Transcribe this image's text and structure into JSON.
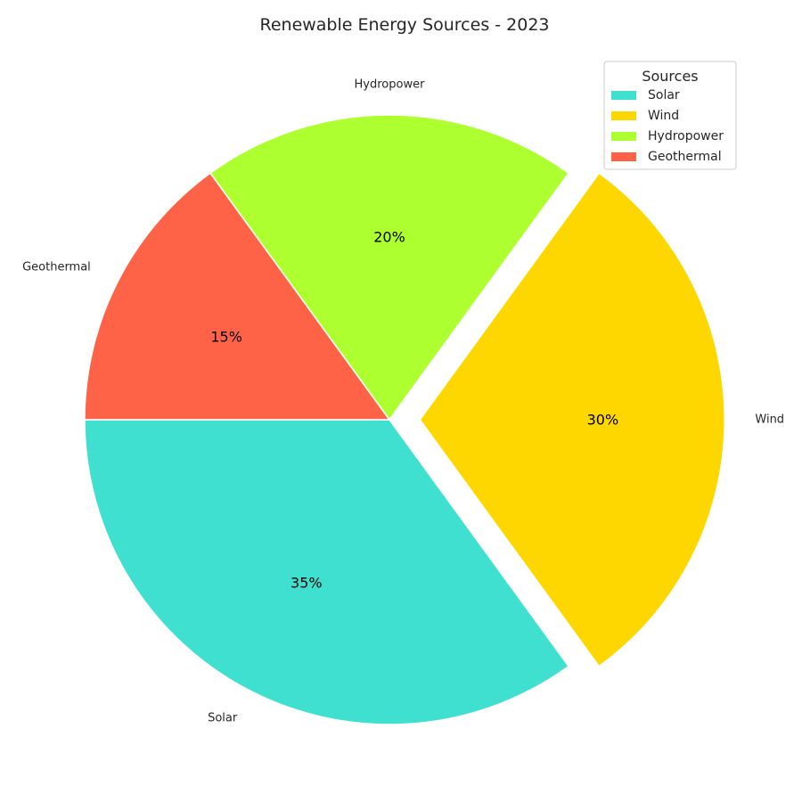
{
  "chart_data": {
    "type": "pie",
    "title": "Renewable Energy Sources - 2023",
    "categories": [
      "Solar",
      "Wind",
      "Hydropower",
      "Geothermal"
    ],
    "values": [
      35,
      30,
      20,
      15
    ],
    "percent_labels": [
      "35%",
      "30%",
      "20%",
      "15%"
    ],
    "colors": [
      "#40E0D0",
      "#FFD700",
      "#ADFF2F",
      "#FF6347"
    ],
    "exploded": [
      false,
      true,
      false,
      false
    ],
    "start_angle_deg": 180,
    "direction": "counterclockwise",
    "legend": {
      "title": "Sources",
      "placement": "upper right",
      "entries": [
        "Solar",
        "Wind",
        "Hydropower",
        "Geothermal"
      ]
    }
  }
}
